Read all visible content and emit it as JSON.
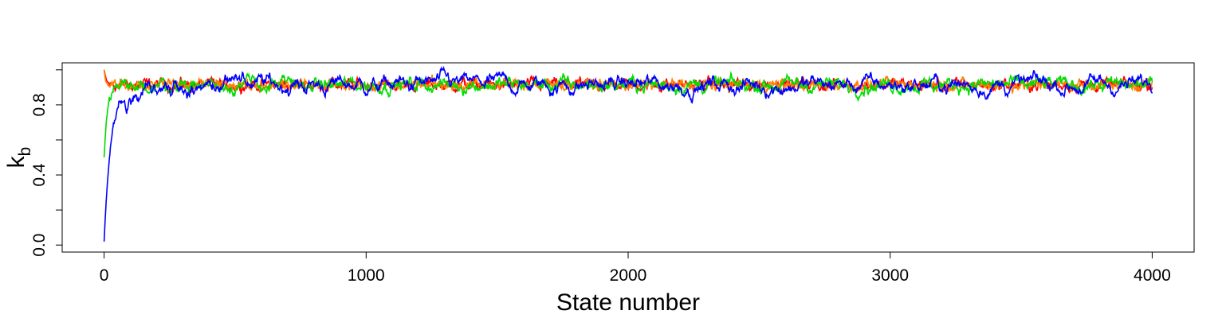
{
  "chart_data": {
    "type": "line",
    "title": "",
    "xlabel": "State number",
    "ylabel_main": "k",
    "ylabel_sub": "b",
    "xlim": [
      -160,
      4160
    ],
    "ylim": [
      -0.04,
      1.04
    ],
    "x_ticks": [
      0,
      1000,
      2000,
      3000,
      4000
    ],
    "x_tick_labels": [
      "0",
      "1000",
      "2000",
      "3000",
      "4000"
    ],
    "y_ticks": [
      0.0,
      0.2,
      0.4,
      0.6,
      0.8,
      1.0
    ],
    "y_tick_labels": [
      "0.0",
      "",
      "0.4",
      "",
      "0.8",
      ""
    ],
    "grid": false,
    "legend": "none",
    "n_states": 4000,
    "series": [
      {
        "color": "#ff0000",
        "start": 1.0,
        "level": 0.915,
        "noise": 0.012,
        "tau": 8
      },
      {
        "color": "#ff8000",
        "start": 1.0,
        "level": 0.915,
        "noise": 0.012,
        "tau": 6
      },
      {
        "color": "#00dd00",
        "start": 0.5,
        "level": 0.915,
        "noise": 0.012,
        "tau": 14
      },
      {
        "color": "#0000ff",
        "start": 0.02,
        "level": 0.915,
        "noise": 0.012,
        "tau": 28
      }
    ]
  }
}
